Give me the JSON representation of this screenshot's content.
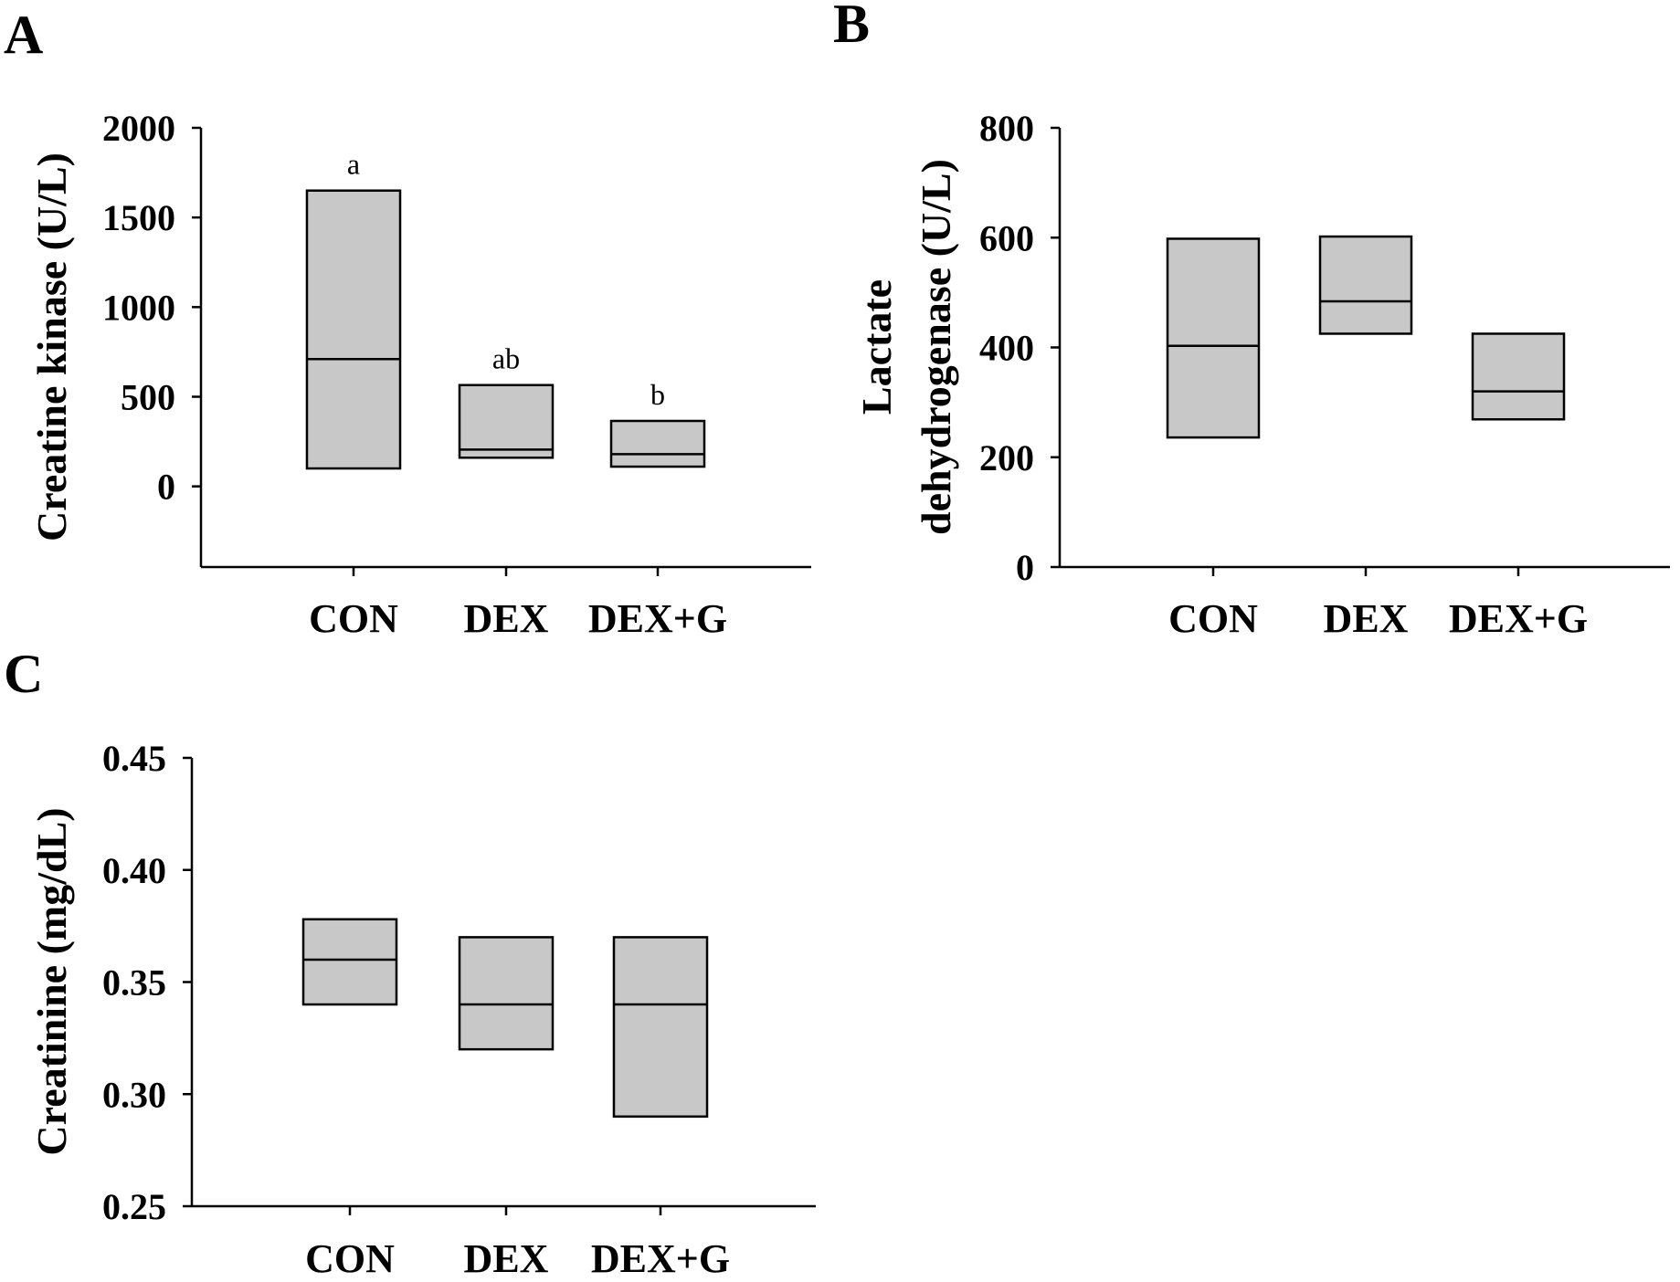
{
  "chart_data": [
    {
      "panel": "A",
      "type": "box",
      "ylabel": "Creatine kinase (U/L)",
      "xlabel": "",
      "categories": [
        "CON",
        "DEX",
        "DEX+G"
      ],
      "ylim": [
        -450,
        2000
      ],
      "yticks": [
        0,
        500,
        1000,
        1500,
        2000
      ],
      "ytick_labels": [
        "0",
        "500",
        "1000",
        "1500",
        "2000"
      ],
      "boxes": [
        {
          "q1": 100,
          "median": 710,
          "q3": 1650
        },
        {
          "q1": 160,
          "median": 205,
          "q3": 565
        },
        {
          "q1": 110,
          "median": 180,
          "q3": 365
        }
      ],
      "annotations": [
        "a",
        "ab",
        "b"
      ]
    },
    {
      "panel": "B",
      "type": "box",
      "ylabel_lines": [
        "Lactate",
        "dehydrogenase (U/L)"
      ],
      "xlabel": "",
      "categories": [
        "CON",
        "DEX",
        "DEX+G"
      ],
      "ylim": [
        0,
        800
      ],
      "yticks": [
        0,
        200,
        400,
        600,
        800
      ],
      "ytick_labels": [
        "0",
        "200",
        "400",
        "600",
        "800"
      ],
      "boxes": [
        {
          "q1": 236,
          "median": 403,
          "q3": 598
        },
        {
          "q1": 425,
          "median": 484,
          "q3": 602
        },
        {
          "q1": 269,
          "median": 320,
          "q3": 425
        }
      ],
      "annotations": []
    },
    {
      "panel": "C",
      "type": "box",
      "ylabel": "Creatinine (mg/dL)",
      "xlabel": "",
      "categories": [
        "CON",
        "DEX",
        "DEX+G"
      ],
      "ylim": [
        0.25,
        0.45
      ],
      "yticks": [
        0.25,
        0.3,
        0.35,
        0.4,
        0.45
      ],
      "ytick_labels": [
        "0.25",
        "0.30",
        "0.35",
        "0.40",
        "0.45"
      ],
      "boxes": [
        {
          "q1": 0.34,
          "median": 0.36,
          "q3": 0.378
        },
        {
          "q1": 0.32,
          "median": 0.34,
          "q3": 0.37
        },
        {
          "q1": 0.29,
          "median": 0.34,
          "q3": 0.37
        }
      ],
      "annotations": []
    }
  ]
}
